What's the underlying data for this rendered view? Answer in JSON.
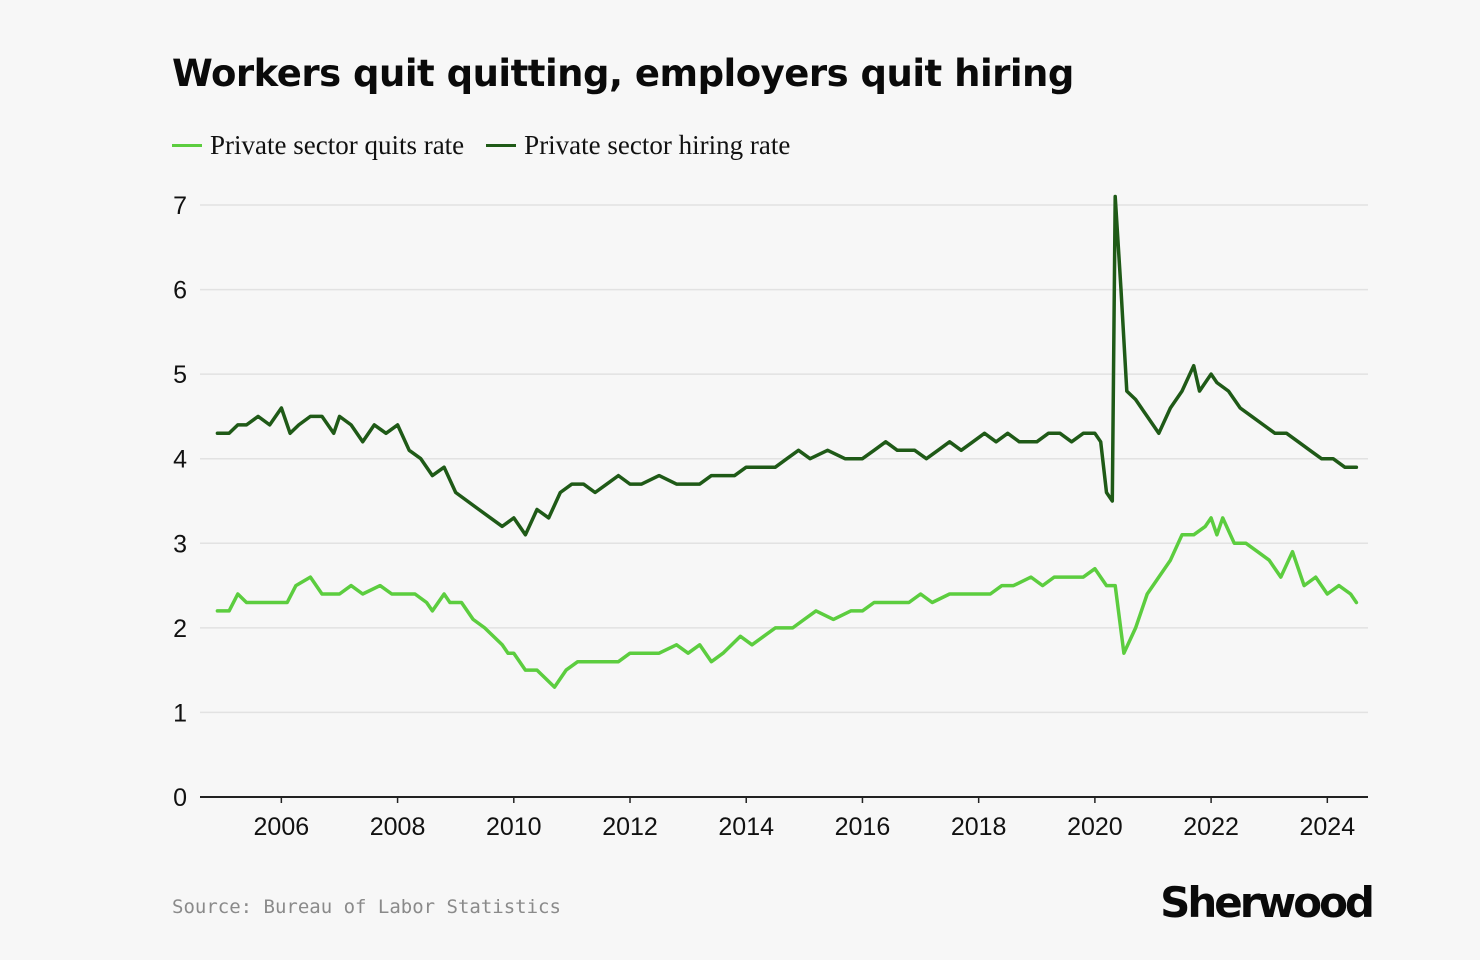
{
  "colors": {
    "background": "#f7f7f7",
    "quits": "#5ccd3f",
    "hiring": "#1f5a17",
    "grid": "#e2e2e2",
    "axis": "#222222"
  },
  "footer": {
    "source": "Source: Bureau of Labor Statistics",
    "brand": "Sherwood"
  },
  "chart_data": {
    "type": "line",
    "title": "Workers quit quitting, employers quit hiring",
    "xlabel": "",
    "ylabel": "",
    "xlim": [
      2004.6,
      2024.7
    ],
    "ylim": [
      0,
      7
    ],
    "yticks": [
      0,
      1,
      2,
      3,
      4,
      5,
      6,
      7
    ],
    "xticks": [
      2006,
      2008,
      2010,
      2012,
      2014,
      2016,
      2018,
      2020,
      2022,
      2024
    ],
    "grid": true,
    "legend": "top-left",
    "series": [
      {
        "name": "Private sector quits rate",
        "color": "#5ccd3f",
        "x": [
          2004.9,
          2005.1,
          2005.25,
          2005.4,
          2005.6,
          2005.9,
          2006.0,
          2006.1,
          2006.25,
          2006.5,
          2006.7,
          2006.9,
          2007.0,
          2007.2,
          2007.4,
          2007.7,
          2007.9,
          2008.0,
          2008.1,
          2008.3,
          2008.5,
          2008.6,
          2008.8,
          2008.9,
          2009.1,
          2009.3,
          2009.5,
          2009.8,
          2009.9,
          2010.0,
          2010.2,
          2010.4,
          2010.7,
          2010.9,
          2011.1,
          2011.3,
          2011.6,
          2011.8,
          2012.0,
          2012.2,
          2012.5,
          2012.8,
          2013.0,
          2013.2,
          2013.4,
          2013.6,
          2013.9,
          2014.1,
          2014.3,
          2014.5,
          2014.8,
          2015.0,
          2015.2,
          2015.5,
          2015.8,
          2016.0,
          2016.2,
          2016.5,
          2016.8,
          2017.0,
          2017.2,
          2017.5,
          2017.8,
          2018.0,
          2018.2,
          2018.4,
          2018.6,
          2018.9,
          2019.1,
          2019.3,
          2019.5,
          2019.8,
          2020.0,
          2020.2,
          2020.35,
          2020.5,
          2020.7,
          2020.9,
          2021.1,
          2021.3,
          2021.5,
          2021.7,
          2021.9,
          2022.0,
          2022.1,
          2022.2,
          2022.4,
          2022.6,
          2022.8,
          2023.0,
          2023.2,
          2023.4,
          2023.6,
          2023.8,
          2024.0,
          2024.2,
          2024.4,
          2024.5
        ],
        "y": [
          2.2,
          2.2,
          2.4,
          2.3,
          2.3,
          2.3,
          2.3,
          2.3,
          2.5,
          2.6,
          2.4,
          2.4,
          2.4,
          2.5,
          2.4,
          2.5,
          2.4,
          2.4,
          2.4,
          2.4,
          2.3,
          2.2,
          2.4,
          2.3,
          2.3,
          2.1,
          2.0,
          1.8,
          1.7,
          1.7,
          1.5,
          1.5,
          1.3,
          1.5,
          1.6,
          1.6,
          1.6,
          1.6,
          1.7,
          1.7,
          1.7,
          1.8,
          1.7,
          1.8,
          1.6,
          1.7,
          1.9,
          1.8,
          1.9,
          2.0,
          2.0,
          2.1,
          2.2,
          2.1,
          2.2,
          2.2,
          2.3,
          2.3,
          2.3,
          2.4,
          2.3,
          2.4,
          2.4,
          2.4,
          2.4,
          2.5,
          2.5,
          2.6,
          2.5,
          2.6,
          2.6,
          2.6,
          2.7,
          2.5,
          2.5,
          1.7,
          2.0,
          2.4,
          2.6,
          2.8,
          3.1,
          3.1,
          3.2,
          3.3,
          3.1,
          3.3,
          3.0,
          3.0,
          2.9,
          2.8,
          2.6,
          2.9,
          2.5,
          2.6,
          2.4,
          2.5,
          2.4,
          2.3
        ]
      },
      {
        "name": "Private sector hiring rate",
        "color": "#1f5a17",
        "x": [
          2004.9,
          2005.1,
          2005.25,
          2005.4,
          2005.6,
          2005.8,
          2006.0,
          2006.15,
          2006.3,
          2006.5,
          2006.7,
          2006.9,
          2007.0,
          2007.2,
          2007.4,
          2007.6,
          2007.8,
          2008.0,
          2008.2,
          2008.4,
          2008.6,
          2008.8,
          2009.0,
          2009.2,
          2009.4,
          2009.6,
          2009.8,
          2010.0,
          2010.2,
          2010.4,
          2010.6,
          2010.8,
          2011.0,
          2011.2,
          2011.4,
          2011.6,
          2011.8,
          2012.0,
          2012.2,
          2012.5,
          2012.8,
          2013.0,
          2013.2,
          2013.4,
          2013.6,
          2013.8,
          2014.0,
          2014.2,
          2014.5,
          2014.7,
          2014.9,
          2015.1,
          2015.4,
          2015.7,
          2016.0,
          2016.2,
          2016.4,
          2016.6,
          2016.9,
          2017.1,
          2017.3,
          2017.5,
          2017.7,
          2017.9,
          2018.1,
          2018.3,
          2018.5,
          2018.7,
          2019.0,
          2019.2,
          2019.4,
          2019.6,
          2019.8,
          2020.0,
          2020.1,
          2020.2,
          2020.3,
          2020.35,
          2020.45,
          2020.55,
          2020.7,
          2020.9,
          2021.1,
          2021.3,
          2021.5,
          2021.7,
          2021.8,
          2022.0,
          2022.1,
          2022.3,
          2022.5,
          2022.7,
          2022.9,
          2023.1,
          2023.3,
          2023.5,
          2023.7,
          2023.9,
          2024.1,
          2024.3,
          2024.5
        ],
        "y": [
          4.3,
          4.3,
          4.4,
          4.4,
          4.5,
          4.4,
          4.6,
          4.3,
          4.4,
          4.5,
          4.5,
          4.3,
          4.5,
          4.4,
          4.2,
          4.4,
          4.3,
          4.4,
          4.1,
          4.0,
          3.8,
          3.9,
          3.6,
          3.5,
          3.4,
          3.3,
          3.2,
          3.3,
          3.1,
          3.4,
          3.3,
          3.6,
          3.7,
          3.7,
          3.6,
          3.7,
          3.8,
          3.7,
          3.7,
          3.8,
          3.7,
          3.7,
          3.7,
          3.8,
          3.8,
          3.8,
          3.9,
          3.9,
          3.9,
          4.0,
          4.1,
          4.0,
          4.1,
          4.0,
          4.0,
          4.1,
          4.2,
          4.1,
          4.1,
          4.0,
          4.1,
          4.2,
          4.1,
          4.2,
          4.3,
          4.2,
          4.3,
          4.2,
          4.2,
          4.3,
          4.3,
          4.2,
          4.3,
          4.3,
          4.2,
          3.6,
          3.5,
          7.1,
          6.0,
          4.8,
          4.7,
          4.5,
          4.3,
          4.6,
          4.8,
          5.1,
          4.8,
          5.0,
          4.9,
          4.8,
          4.6,
          4.5,
          4.4,
          4.3,
          4.3,
          4.2,
          4.1,
          4.0,
          4.0,
          3.9,
          3.9
        ]
      }
    ]
  }
}
